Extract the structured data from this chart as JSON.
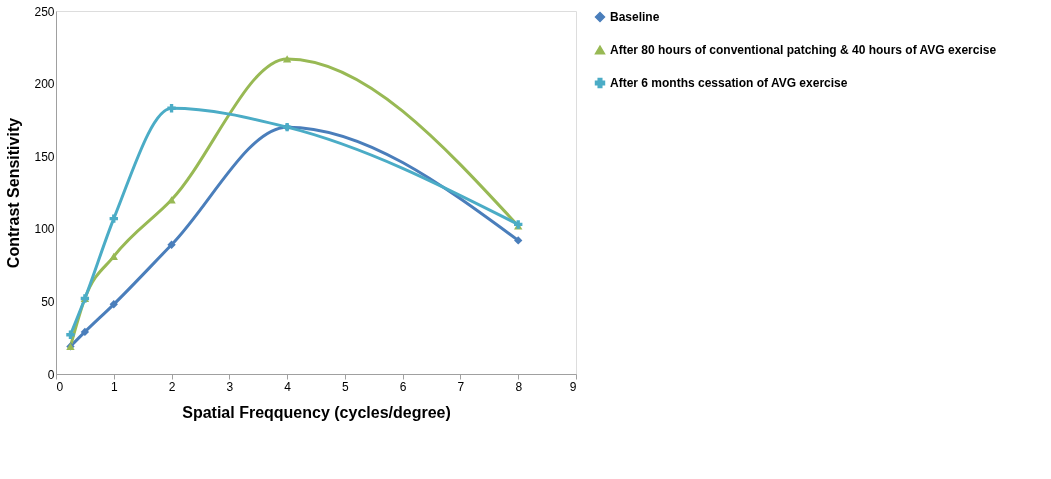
{
  "chart_data": {
    "type": "line",
    "xlabel": "Spatial Freqquency (cycles/degree)",
    "ylabel": "Contrast Sensitivity",
    "x": [
      0.25,
      0.5,
      1,
      2,
      4,
      8
    ],
    "series": [
      {
        "name": "Baseline",
        "color": "#4a7ebb",
        "marker": "diamond",
        "values": [
          19,
          29,
          48,
          89,
          170,
          92
        ]
      },
      {
        "name": "After 80 hours of conventional patching & 40 hours of AVG exercise",
        "color": "#98b954",
        "marker": "triangle",
        "values": [
          19,
          52,
          81,
          120,
          217,
          102
        ]
      },
      {
        "name": "After 6 months cessation of AVG exercise",
        "color": "#4bacc6",
        "marker": "cross",
        "values": [
          27,
          52,
          107,
          183,
          170,
          103
        ]
      }
    ],
    "xlim": [
      0,
      9
    ],
    "xticks": [
      0,
      1,
      2,
      3,
      4,
      5,
      6,
      7,
      8,
      9
    ],
    "ylim": [
      0,
      250
    ],
    "yticks": [
      0,
      50,
      100,
      150,
      200,
      250
    ],
    "grid": false,
    "legend": "right",
    "line_style": "solid"
  }
}
